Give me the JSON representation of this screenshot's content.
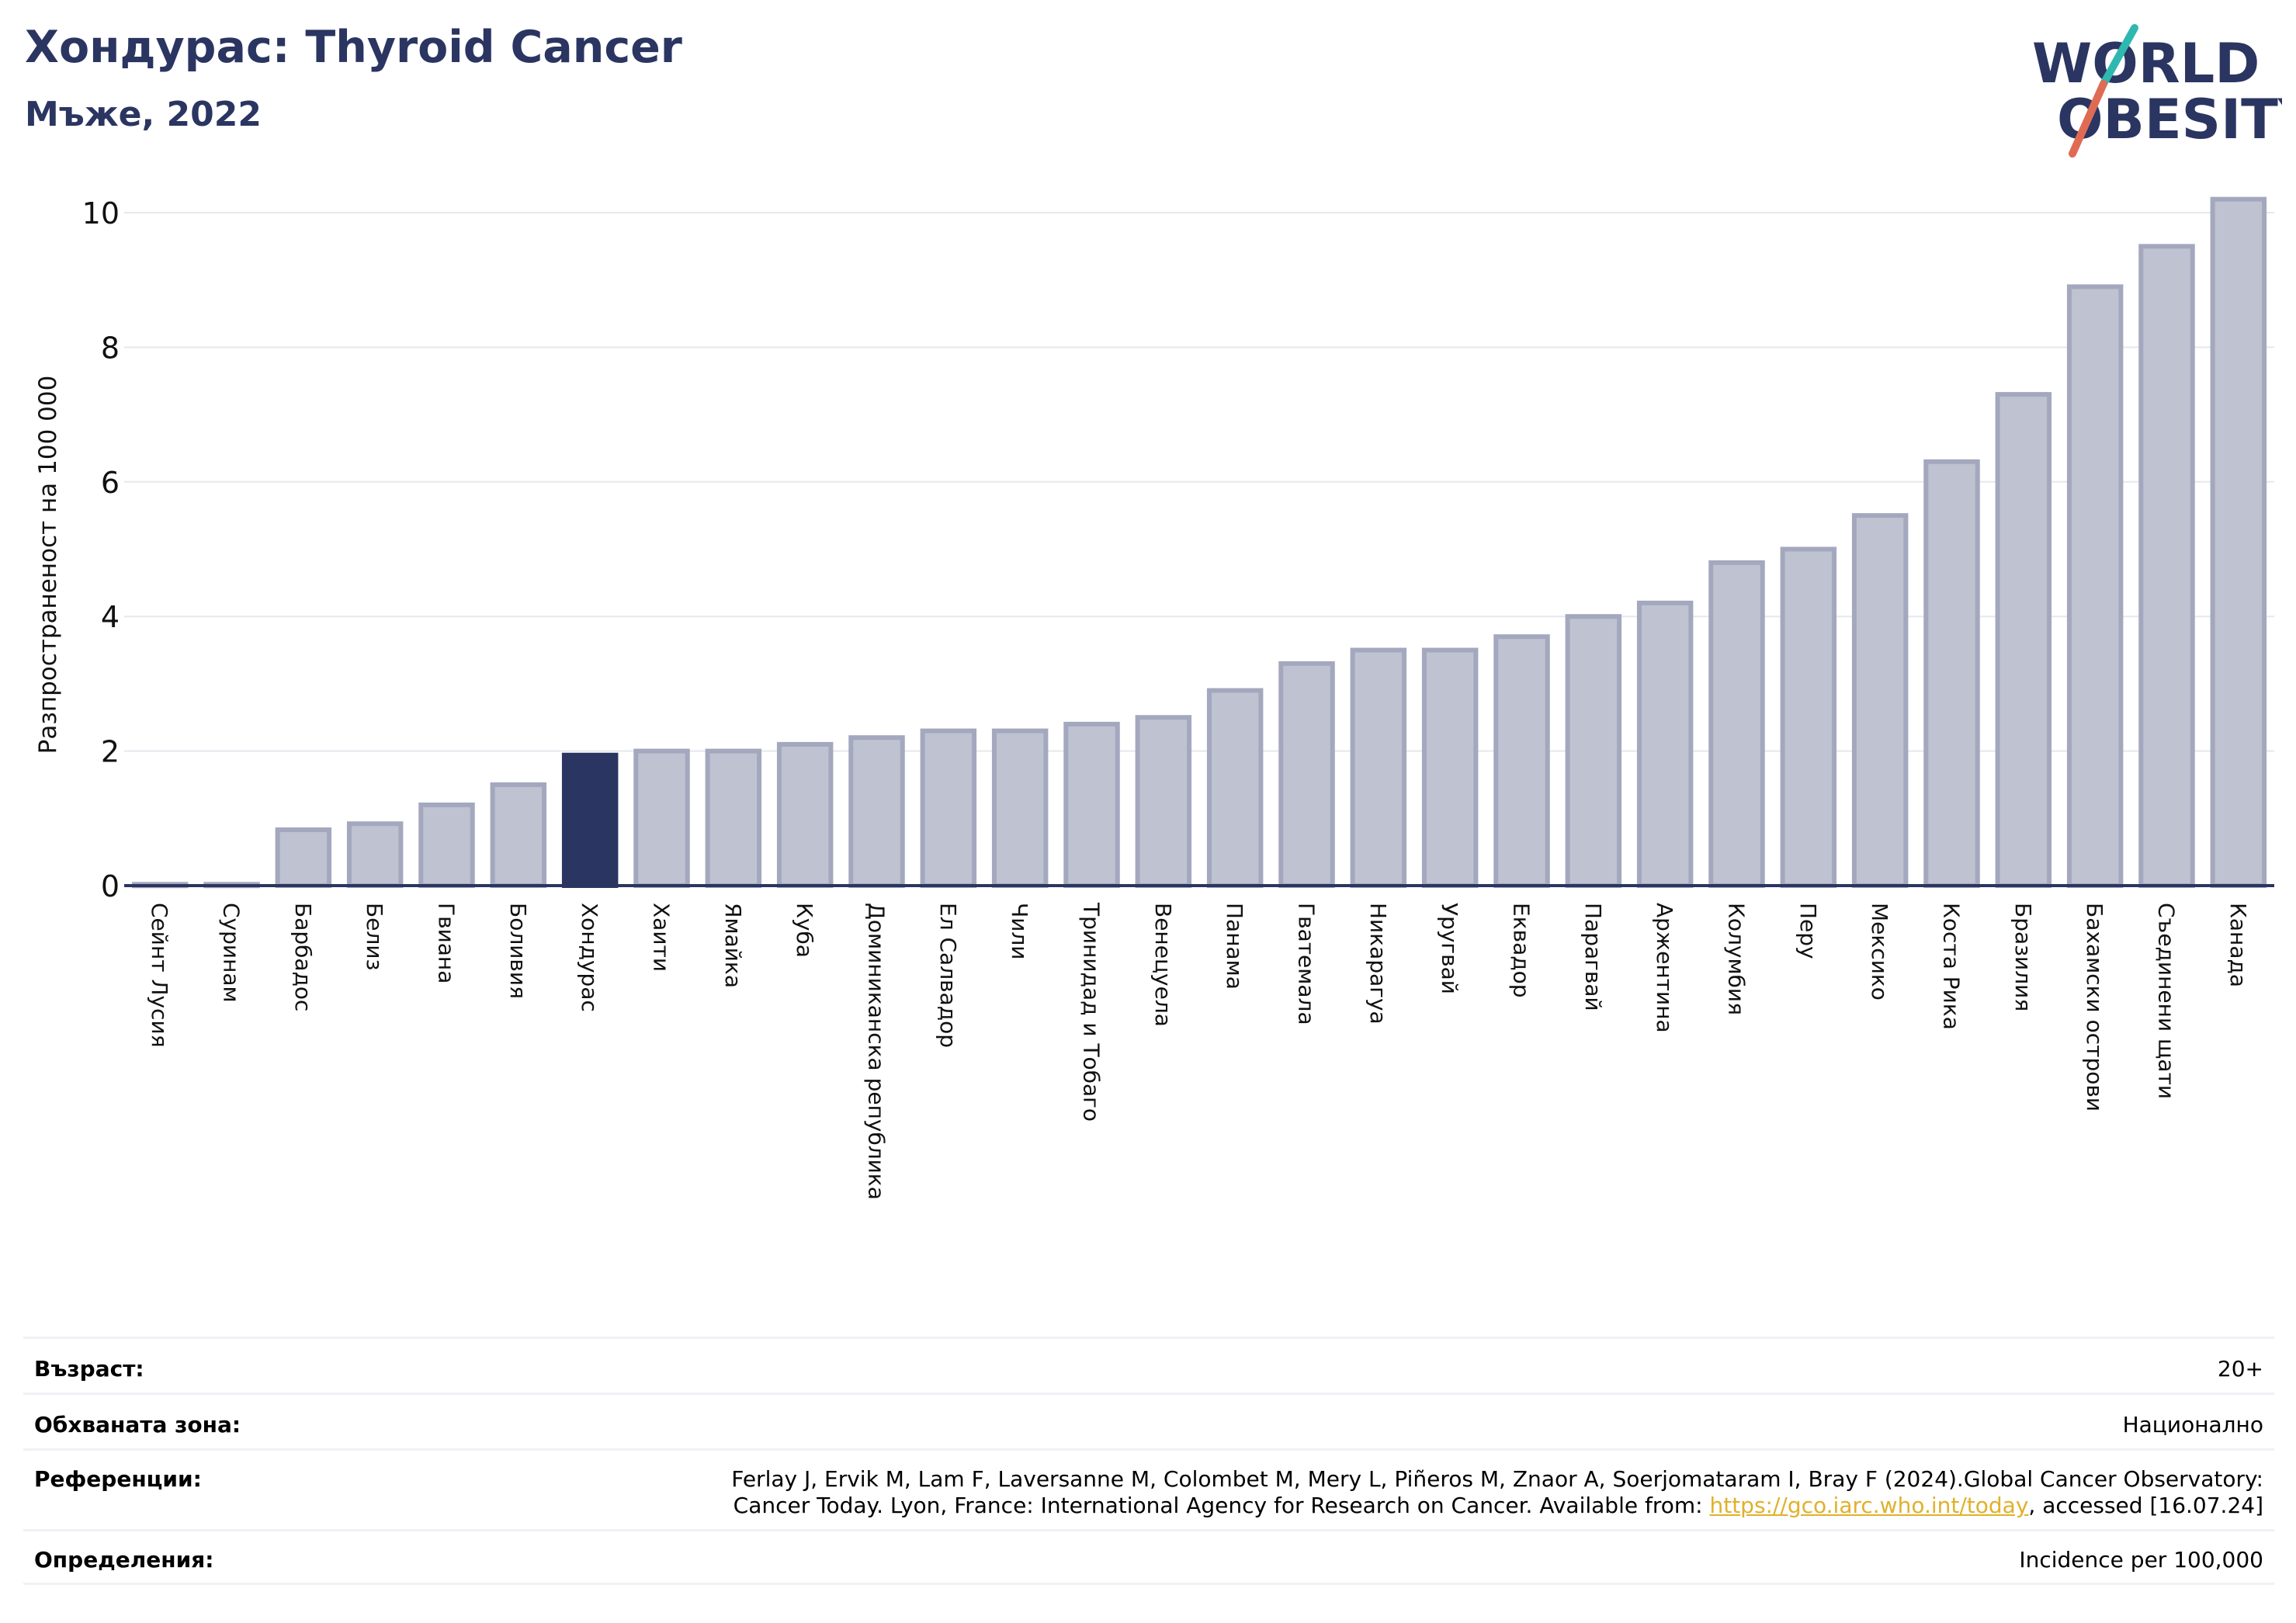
{
  "title": "Хондурас: Thyroid Cancer",
  "subtitle": "Мъже, 2022",
  "logo": {
    "line1": "WORLD",
    "line2": "OBESITY",
    "accent_colors": [
      "#2fb8b0",
      "#e06b55"
    ]
  },
  "colors": {
    "bar": "#bfc2d0",
    "bar_edge": "#a4a8be",
    "highlight": "#2b3561",
    "title": "#2b3561",
    "grid": "#e6e8ee"
  },
  "chart_data": {
    "type": "bar",
    "ylabel": "Разпространеност  на 100 000",
    "ylim": [
      0,
      10.3
    ],
    "yticks": [
      0,
      2,
      4,
      6,
      8,
      10
    ],
    "grid": true,
    "highlight": "Хондурас",
    "categories": [
      "Сейнт Лусия",
      "Суринам",
      "Барбадос",
      "Белиз",
      "Гвиана",
      "Боливия",
      "Хондурас",
      "Хаити",
      "Ямайка",
      "Куба",
      "Доминиканска република",
      "Ел Салвадор",
      "Чили",
      "Тринидад и Тобаго",
      "Венецуела",
      "Панама",
      "Гватемала",
      "Никарагуа",
      "Уругвай",
      "Еквадор",
      "Парагвай",
      "Аржентина",
      "Колумбия",
      "Перу",
      "Мексико",
      "Коста Рика",
      "Бразилия",
      "Бахамски острови",
      "Съединени щати",
      "Канада"
    ],
    "values": [
      0.02,
      0.02,
      0.83,
      0.92,
      1.2,
      1.5,
      1.94,
      2.0,
      2.0,
      2.1,
      2.2,
      2.3,
      2.3,
      2.4,
      2.5,
      2.9,
      3.3,
      3.5,
      3.5,
      3.7,
      4.0,
      4.2,
      4.8,
      5.0,
      5.5,
      6.3,
      7.3,
      8.9,
      9.5,
      10.2
    ]
  },
  "meta": {
    "age_label": "Възраст:",
    "age_value": "20+",
    "coverage_label": "Обхваната зона:",
    "coverage_value": "Национално",
    "refs_label": "Референции:",
    "refs_line1": "Ferlay J, Ervik M, Lam F, Laversanne M, Colombet M, Mery L, Piñeros M, Znaor A, Soerjomataram I, Bray F (2024).Global Cancer Observatory:",
    "refs_line2_pre": "Cancer Today. Lyon, France: International Agency for Research on Cancer. Available from: ",
    "refs_link": "https://gco.iarc.who.int/today",
    "refs_line2_post": ", accessed [16.07.24]",
    "def_label": "Определения:",
    "def_value": "Incidence per 100,000"
  }
}
